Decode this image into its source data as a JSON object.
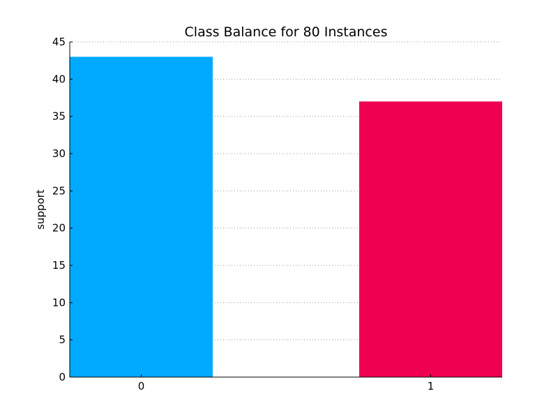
{
  "chart_data": {
    "type": "bar",
    "title": "Class Balance for 80 Instances",
    "xlabel": "",
    "ylabel": "support",
    "categories": [
      "0",
      "1"
    ],
    "values": [
      43,
      37
    ],
    "bar_colors": [
      "#00aaff",
      "#f00050"
    ],
    "ylim": [
      0,
      45
    ],
    "yticks": [
      "0",
      "5",
      "10",
      "15",
      "20",
      "25",
      "30",
      "35",
      "40",
      "45"
    ],
    "grid": "horizontal dotted",
    "legend": "none"
  }
}
